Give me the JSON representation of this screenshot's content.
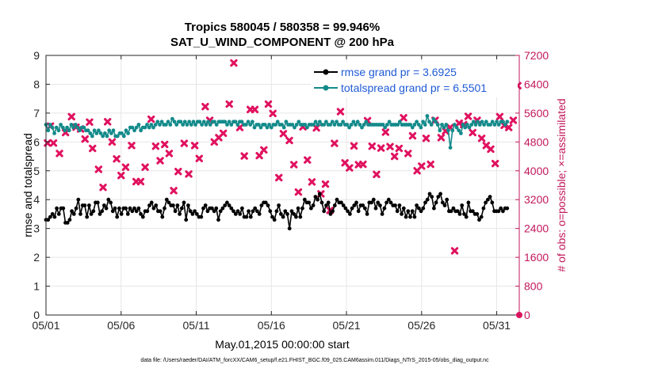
{
  "chart_data": {
    "type": "line",
    "title": "Tropics 580045 / 580358 = 99.946%",
    "subtitle": "SAT_U_WIND_COMPONENT @ 200 hPa",
    "xlabel": "May.01,2015 00:00:00 start",
    "ylabel": "rmse and totalspread",
    "ylabel_right": "# of obs: o=possible; ×=assimilated",
    "xlim": [
      0,
      31.5
    ],
    "ylim": [
      0,
      9
    ],
    "ylim_right": [
      0,
      7200
    ],
    "x_ticks": [
      0,
      5,
      10,
      15,
      20,
      25,
      30
    ],
    "x_tick_labels": [
      "05/01",
      "05/06",
      "05/11",
      "05/16",
      "05/21",
      "05/26",
      "05/31"
    ],
    "y_ticks": [
      0,
      1,
      2,
      3,
      4,
      5,
      6,
      7,
      8,
      9
    ],
    "y_ticks_right": [
      0,
      800,
      1600,
      2400,
      3200,
      4000,
      4800,
      5600,
      6400,
      7200
    ],
    "grid": true,
    "legend_position": "top-right",
    "footer": "data file: /Users/raeder/DAI/ATM_forcXX/CAM6_setup/f.e21.FHIST_BGC.f09_025.CAM6assim.011/Diags_NTrS_2015-05/obs_diag_output.nc",
    "colors": {
      "rmse": "#000000",
      "spread": "#138a8a",
      "obs": "#e0115f",
      "right_axis": "#c2185b",
      "legend_text": "#1f5bd6"
    },
    "series": [
      {
        "name": "rmse grand pr = 3.6925",
        "axis": "left",
        "values": [
          3.3,
          3.3,
          3.4,
          3.5,
          3.4,
          3.7,
          3.5,
          3.7,
          3.7,
          3.2,
          3.2,
          3.3,
          3.6,
          3.5,
          3.7,
          4.0,
          3.5,
          3.8,
          3.8,
          3.4,
          3.8,
          3.5,
          3.6,
          3.9,
          3.9,
          3.5,
          3.6,
          3.8,
          3.7,
          4.0,
          3.9,
          3.6,
          3.7,
          3.4,
          3.7,
          3.5,
          3.7,
          3.7,
          3.5,
          3.7,
          3.6,
          3.7,
          3.6,
          3.7,
          3.5,
          3.4,
          3.6,
          3.6,
          3.8,
          3.9,
          3.7,
          3.8,
          3.6,
          3.6,
          3.4,
          3.7,
          4.0,
          3.9,
          3.8,
          3.8,
          3.6,
          3.8,
          3.5,
          3.7,
          3.9,
          3.3,
          3.8,
          3.6,
          3.5,
          3.6,
          3.5,
          3.4,
          3.4,
          3.7,
          3.8,
          3.6,
          3.7,
          3.7,
          3.6,
          3.7,
          3.3,
          3.6,
          3.7,
          3.8,
          3.9,
          3.8,
          3.7,
          3.6,
          3.5,
          3.6,
          3.5,
          3.7,
          3.4,
          3.4,
          3.6,
          3.4,
          3.6,
          3.7,
          3.6,
          3.5,
          3.8,
          3.9,
          3.9,
          3.8,
          3.6,
          3.4,
          3.3,
          3.6,
          3.8,
          3.5,
          3.4,
          3.6,
          3.5,
          3.0,
          3.6,
          3.5,
          3.4,
          3.7,
          3.4,
          3.7,
          4.0,
          3.9,
          3.9,
          3.7,
          3.8,
          4.1,
          4.0,
          4.2,
          3.9,
          3.6,
          3.8,
          3.9,
          3.5,
          3.6,
          3.8,
          4.0,
          3.9,
          3.9,
          3.8,
          3.7,
          3.6,
          3.5,
          3.7,
          3.8,
          3.9,
          3.6,
          3.8,
          3.8,
          3.7,
          3.5,
          3.9,
          3.9,
          4.0,
          3.7,
          3.9,
          3.8,
          3.5,
          3.7,
          3.9,
          4.0,
          3.9,
          3.8,
          3.8,
          3.6,
          3.8,
          3.5,
          3.7,
          3.4,
          3.6,
          3.4,
          3.6,
          3.4,
          3.8,
          3.7,
          3.6,
          3.7,
          3.9,
          4.0,
          4.2,
          4.1,
          3.7,
          3.9,
          4.1,
          4.2,
          3.9,
          3.8,
          4.0,
          3.6,
          3.6,
          3.7,
          3.6,
          3.6,
          3.5,
          3.8,
          3.5,
          3.4,
          3.9,
          3.6,
          3.6,
          3.5,
          3.5,
          3.3,
          3.4,
          3.7,
          3.9,
          4.0,
          4.1,
          3.9,
          3.6,
          3.6,
          3.6,
          3.7,
          3.6,
          3.7,
          3.7
        ]
      },
      {
        "name": "totalspread grand pr = 6.5501",
        "axis": "left",
        "values": [
          6.6,
          6.4,
          6.6,
          6.5,
          6.3,
          6.5,
          6.4,
          6.6,
          6.5,
          6.4,
          6.5,
          6.4,
          6.6,
          6.5,
          6.6,
          6.5,
          6.4,
          6.5,
          6.5,
          6.4,
          6.4,
          6.3,
          6.2,
          6.4,
          6.3,
          6.4,
          6.3,
          6.2,
          6.3,
          6.2,
          6.4,
          6.3,
          6.4,
          6.2,
          6.2,
          6.3,
          6.3,
          6.2,
          6.4,
          6.3,
          6.5,
          6.5,
          6.4,
          6.5,
          6.6,
          6.4,
          6.5,
          6.5,
          6.6,
          6.5,
          6.6,
          6.5,
          6.6,
          6.7,
          6.6,
          6.7,
          6.6,
          6.6,
          6.7,
          6.6,
          6.8,
          6.7,
          6.6,
          6.7,
          6.7,
          6.6,
          6.7,
          6.6,
          6.7,
          6.6,
          6.7,
          6.6,
          6.7,
          6.7,
          6.6,
          6.7,
          6.6,
          6.7,
          6.6,
          6.7,
          6.7,
          6.6,
          6.7,
          6.7,
          6.7,
          6.7,
          6.6,
          6.7,
          6.6,
          6.7,
          6.7,
          6.6,
          6.7,
          6.7,
          6.6,
          6.6,
          6.7,
          6.6,
          6.7,
          6.5,
          6.6,
          6.6,
          6.5,
          6.6,
          6.6,
          6.5,
          6.6,
          6.5,
          6.6,
          6.6,
          6.7,
          6.6,
          6.6,
          6.5,
          6.7,
          6.6,
          6.6,
          6.6,
          6.5,
          6.6,
          6.7,
          6.6,
          6.6,
          6.6,
          6.5,
          6.6,
          6.6,
          6.6,
          6.7,
          6.6,
          6.7,
          6.6,
          6.6,
          6.7,
          6.6,
          6.6,
          6.7,
          6.6,
          6.7,
          6.6,
          6.6,
          6.7,
          6.6,
          6.6,
          6.5,
          6.6,
          6.7,
          6.6,
          6.7,
          6.6,
          6.5,
          6.6,
          6.7,
          6.6,
          6.6,
          6.6,
          6.6,
          6.6,
          6.6,
          6.6,
          6.6,
          6.5,
          6.6,
          6.7,
          6.6,
          6.6,
          6.6,
          6.6,
          6.7,
          6.6,
          6.6,
          6.6,
          6.6,
          6.6,
          6.5,
          6.6,
          6.7,
          6.6,
          6.5,
          6.7,
          6.6,
          6.9,
          6.7,
          6.6,
          6.8,
          6.7,
          6.6,
          6.4,
          6.6,
          6.5,
          6.6,
          6.4,
          5.8,
          6.4,
          6.6,
          6.5,
          6.4,
          6.3,
          6.6,
          6.5,
          6.6,
          6.5,
          6.6,
          6.7,
          6.6,
          6.7,
          6.6,
          6.7,
          6.6,
          6.7,
          6.6,
          6.6,
          6.7,
          6.6,
          6.7,
          6.6,
          6.7,
          6.7,
          6.6,
          6.7
        ]
      },
      {
        "name": "# obs assimilated",
        "axis": "right",
        "marker": "x",
        "x": [
          0.1,
          0.3,
          0.5,
          0.9,
          1.3,
          1.7,
          2.0,
          2.3,
          2.6,
          2.9,
          3.1,
          3.5,
          3.8,
          4.1,
          4.4,
          4.7,
          5.0,
          5.3,
          5.7,
          6.0,
          6.3,
          6.6,
          7.0,
          7.3,
          7.6,
          7.9,
          8.2,
          8.5,
          8.8,
          9.2,
          9.5,
          9.9,
          10.2,
          10.6,
          10.9,
          11.2,
          11.5,
          11.8,
          12.2,
          12.5,
          12.9,
          13.2,
          13.6,
          13.9,
          14.2,
          14.5,
          14.8,
          15.1,
          15.5,
          15.8,
          16.2,
          16.5,
          16.8,
          17.1,
          17.4,
          17.7,
          18.0,
          18.3,
          18.6,
          18.9,
          19.2,
          19.6,
          19.9,
          20.2,
          20.5,
          20.8,
          21.1,
          21.4,
          21.7,
          22.0,
          22.3,
          22.6,
          22.9,
          23.2,
          23.5,
          23.8,
          24.1,
          24.4,
          24.7,
          25.0,
          25.3,
          25.6,
          25.9,
          26.3,
          26.6,
          26.9,
          27.2,
          27.5,
          27.8,
          28.1,
          28.4,
          28.7,
          29.0,
          29.3,
          29.6,
          29.9,
          30.2,
          30.5,
          30.8,
          31.1,
          31.4
        ],
        "values": [
          4770,
          5240,
          4770,
          4480,
          5060,
          5500,
          5210,
          5160,
          4880,
          5350,
          4620,
          4040,
          3540,
          5360,
          4800,
          4330,
          3870,
          4100,
          4700,
          3700,
          3700,
          4100,
          5430,
          4680,
          4280,
          4730,
          4480,
          3450,
          3980,
          4760,
          3910,
          4700,
          4340,
          5780,
          5400,
          4800,
          4920,
          5040,
          5850,
          6990,
          5200,
          4410,
          5700,
          5700,
          4420,
          4580,
          5850,
          5590,
          3810,
          5030,
          4840,
          4170,
          3410,
          5220,
          4300,
          3690,
          5190,
          3360,
          3630,
          2900,
          4760,
          5640,
          4220,
          4080,
          4690,
          4170,
          4180,
          5390,
          4680,
          3900,
          4630,
          5070,
          4670,
          4400,
          4620,
          5470,
          4480,
          4970,
          4000,
          4130,
          4900,
          4180,
          5400,
          4920,
          5100,
          5200,
          1780,
          5320,
          5280,
          5510,
          5060,
          5400,
          4900,
          4700,
          4600,
          4200,
          5500,
          5260,
          5200,
          5400,
          6360
        ]
      },
      {
        "name": "# obs possible",
        "axis": "right",
        "marker": "o",
        "x": [
          31.5
        ],
        "values": [
          0
        ]
      }
    ]
  }
}
